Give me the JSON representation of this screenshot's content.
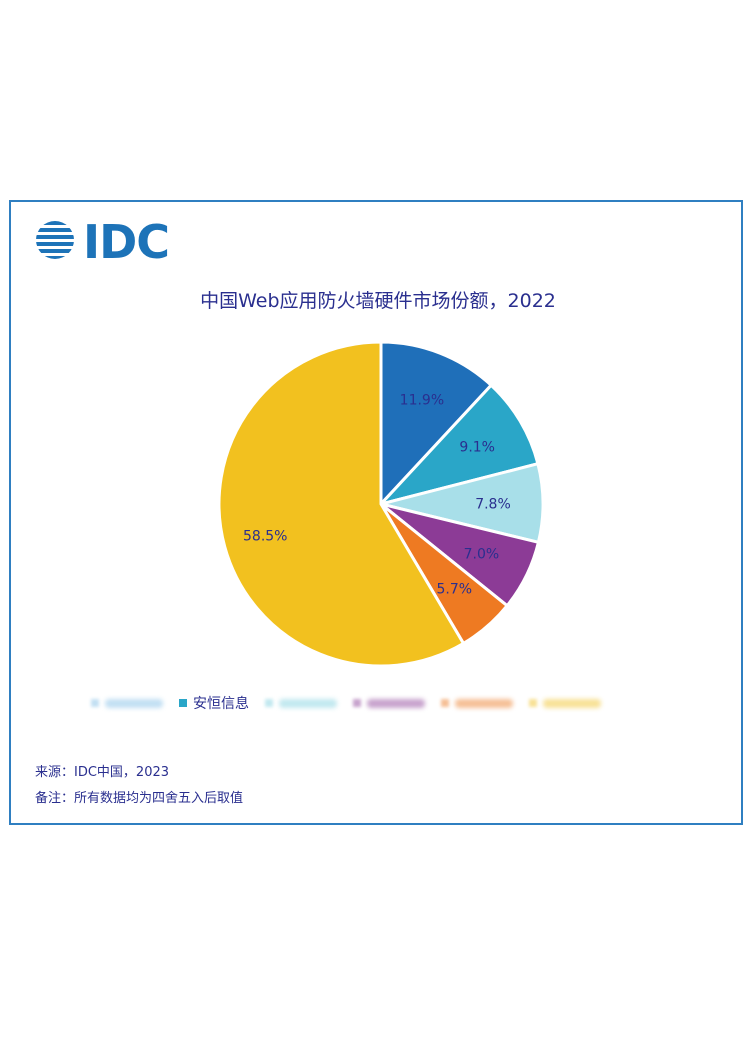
{
  "logo": {
    "text": "IDC",
    "color": "#1d73b8"
  },
  "chart_data": {
    "type": "pie",
    "title": "中国Web应用防火墙硬件市场份额，2022",
    "start_angle_deg": 0,
    "direction": "clockwise",
    "slices": [
      {
        "value": 11.9,
        "label": "11.9%",
        "color": "#1f6fb9"
      },
      {
        "value": 9.1,
        "label": "9.1%",
        "color": "#2aa6c8"
      },
      {
        "value": 7.8,
        "label": "7.8%",
        "color": "#a8dfe9"
      },
      {
        "value": 7.0,
        "label": "7.0%",
        "color": "#8c3b96"
      },
      {
        "value": 5.7,
        "label": "5.7%",
        "color": "#ee7a22"
      },
      {
        "value": 58.5,
        "label": "58.5%",
        "color": "#f2c11f"
      }
    ],
    "legend": {
      "placement": "bottom",
      "entries": [
        {
          "name": "",
          "color": "#a8d2ee"
        },
        {
          "name": "安恒信息",
          "color": "#2aa6c8"
        },
        {
          "name": "",
          "color": "#a8dfe9"
        },
        {
          "name": "",
          "color": "#b07cb8"
        },
        {
          "name": "",
          "color": "#f2a56a"
        },
        {
          "name": "",
          "color": "#f5d56a"
        }
      ]
    }
  },
  "footer": {
    "source": "来源：IDC中国，2023",
    "note": "备注：所有数据均为四舍五入后取值"
  }
}
